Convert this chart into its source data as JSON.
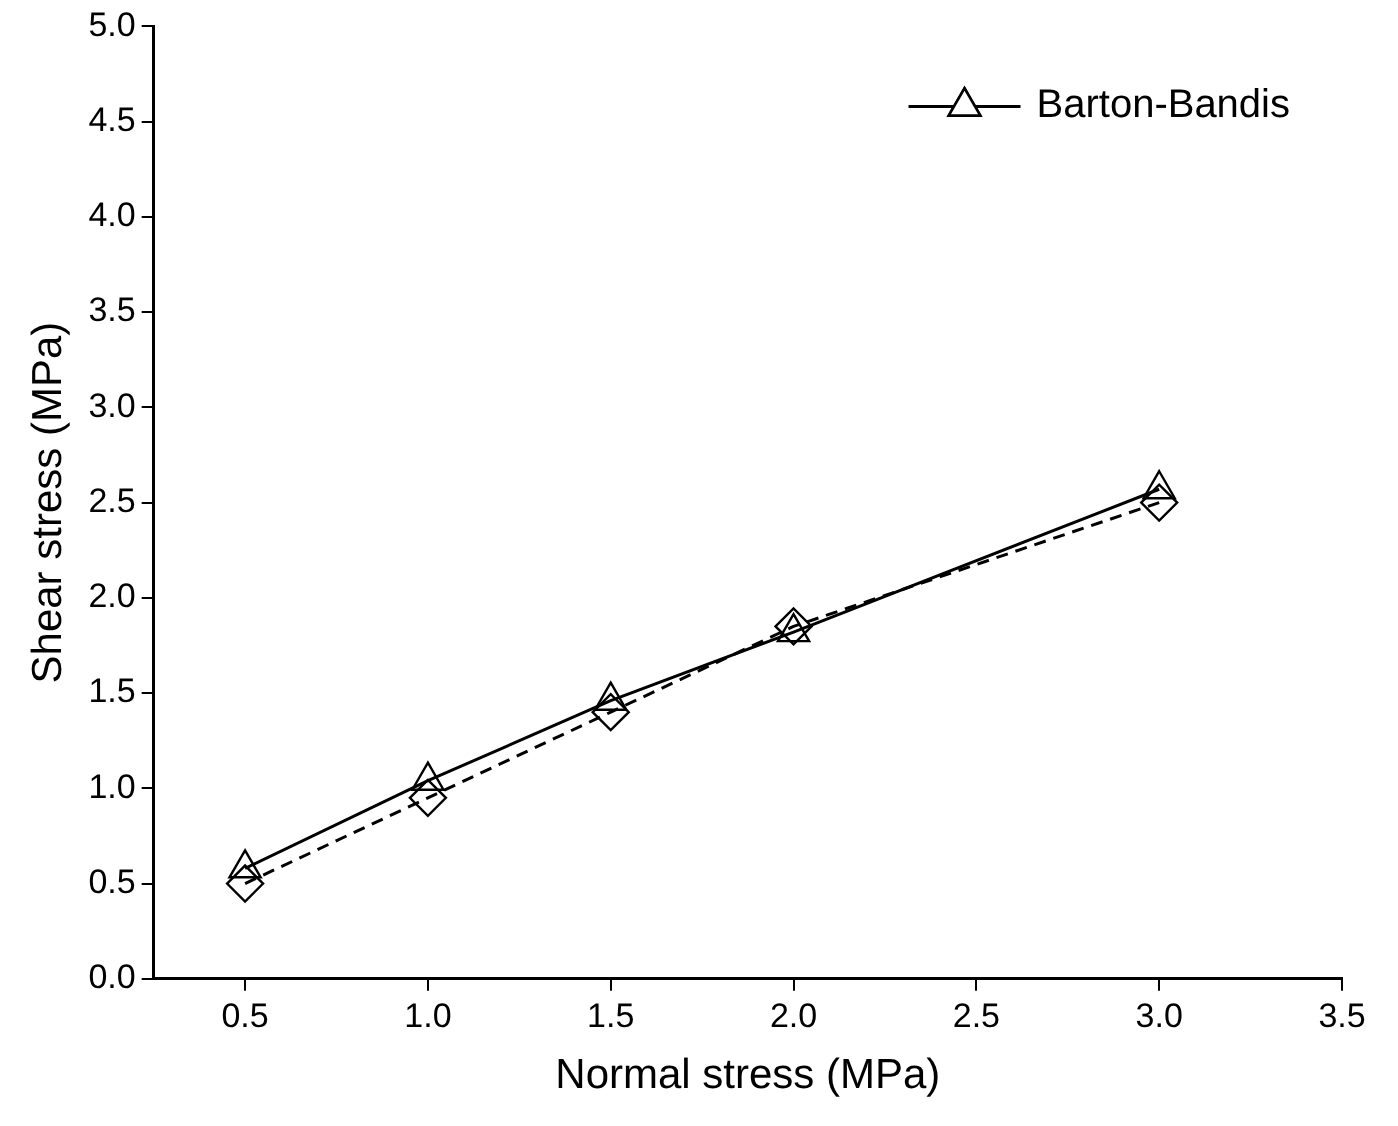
{
  "chart_data": {
    "type": "line",
    "xlabel": "Normal stress (MPa)",
    "ylabel": "Shear stress (MPa)",
    "x": [
      0.5,
      1.0,
      1.5,
      2.0,
      3.0
    ],
    "series": [
      {
        "name": "Barton-Bandis",
        "color": "#000000",
        "values": [
          0.58,
          1.04,
          1.46,
          1.82,
          2.57
        ],
        "marker": "triangle",
        "line_style": "solid"
      },
      {
        "color": "#000000",
        "values": [
          0.5,
          0.95,
          1.4,
          1.85,
          2.5
        ],
        "marker": "diamond",
        "line_style": "dashed"
      }
    ],
    "xlim": [
      0.25,
      3.5
    ],
    "xticks": [
      0.5,
      {
        "value": 1,
        "label": "1.0"
      },
      1.5,
      {
        "value": 2,
        "label": "2.0"
      },
      2.5,
      {
        "value": 3,
        "label": "3.0"
      },
      3.5
    ],
    "ylim": [
      0,
      5
    ],
    "yticks": [
      {
        "value": 0,
        "label": "0.0"
      },
      0.5,
      {
        "value": 1,
        "label": "1.0"
      },
      1.5,
      {
        "value": 2,
        "label": "2.0"
      },
      2.5,
      {
        "value": 3,
        "label": "3.0"
      },
      3.5,
      {
        "value": 4,
        "label": "4.0"
      },
      4.5,
      {
        "value": 5,
        "label": "5.0"
      }
    ],
    "grid": false,
    "legend": "top right"
  }
}
